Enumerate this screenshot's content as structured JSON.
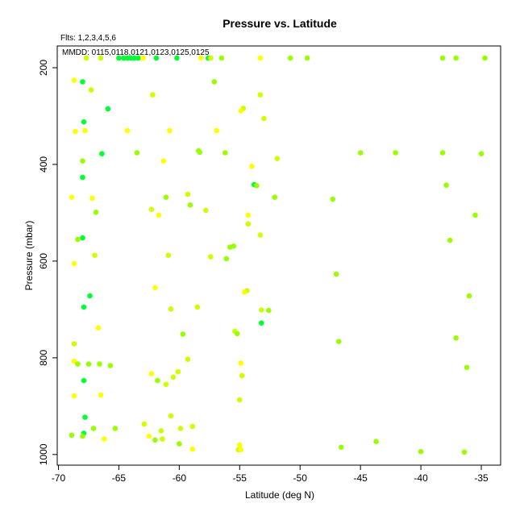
{
  "chart_data": {
    "type": "scatter",
    "title": "Pressure vs. Latitude",
    "flights_label": "Flts: 1,2,3,4,5,6",
    "mmdd_label": "MMDD: 0115,0118,0121,0123,0125,0125",
    "xlabel": "Latitude (deg N)",
    "ylabel": "Pressure (mbar)",
    "xlim": [
      -70.1,
      -33.4
    ],
    "ylim": [
      1022,
      155
    ],
    "y_reversed": true,
    "grid": false,
    "x_ticks": [
      -70,
      -65,
      -60,
      -55,
      -50,
      -45,
      -40,
      -35
    ],
    "x_tick_labels": [
      "-70",
      "-65",
      "-60",
      "-55",
      "-50",
      "-45",
      "-40",
      "-35"
    ],
    "y_ticks": [
      200,
      400,
      600,
      800,
      1000
    ],
    "y_tick_labels": [
      "200",
      "400",
      "600",
      "800",
      "1000"
    ],
    "colors": {
      "yellow": "#ffff00",
      "yellow_green": "#ccff00",
      "light_green": "#99ff00",
      "green": "#66ff00",
      "bright_green": "#00ff33"
    },
    "points": [
      {
        "x": -67.7,
        "y": 180,
        "c": "yellow_green"
      },
      {
        "x": -66.5,
        "y": 180,
        "c": "yellow_green"
      },
      {
        "x": -65.0,
        "y": 180,
        "c": "bright_green"
      },
      {
        "x": -64.6,
        "y": 180,
        "c": "bright_green"
      },
      {
        "x": -64.3,
        "y": 180,
        "c": "bright_green"
      },
      {
        "x": -64.0,
        "y": 180,
        "c": "bright_green"
      },
      {
        "x": -63.7,
        "y": 180,
        "c": "bright_green"
      },
      {
        "x": -63.4,
        "y": 180,
        "c": "bright_green"
      },
      {
        "x": -63.0,
        "y": 180,
        "c": "yellow"
      },
      {
        "x": -61.9,
        "y": 180,
        "c": "bright_green"
      },
      {
        "x": -60.2,
        "y": 180,
        "c": "bright_green"
      },
      {
        "x": -58.2,
        "y": 180,
        "c": "yellow"
      },
      {
        "x": -57.6,
        "y": 180,
        "c": "bright_green"
      },
      {
        "x": -57.4,
        "y": 180,
        "c": "yellow_green"
      },
      {
        "x": -56.5,
        "y": 180,
        "c": "light_green"
      },
      {
        "x": -53.3,
        "y": 180,
        "c": "yellow"
      },
      {
        "x": -50.8,
        "y": 180,
        "c": "light_green"
      },
      {
        "x": -49.4,
        "y": 180,
        "c": "light_green"
      },
      {
        "x": -38.2,
        "y": 180,
        "c": "light_green"
      },
      {
        "x": -37.1,
        "y": 180,
        "c": "light_green"
      },
      {
        "x": -34.7,
        "y": 180,
        "c": "light_green"
      },
      {
        "x": -68.7,
        "y": 226,
        "c": "yellow"
      },
      {
        "x": -68.0,
        "y": 229,
        "c": "bright_green"
      },
      {
        "x": -57.1,
        "y": 229,
        "c": "light_green"
      },
      {
        "x": -67.3,
        "y": 246,
        "c": "yellow_green"
      },
      {
        "x": -62.2,
        "y": 256,
        "c": "yellow_green"
      },
      {
        "x": -53.3,
        "y": 256,
        "c": "yellow_green"
      },
      {
        "x": -65.9,
        "y": 285,
        "c": "bright_green"
      },
      {
        "x": -54.7,
        "y": 284,
        "c": "yellow_green"
      },
      {
        "x": -54.9,
        "y": 289,
        "c": "yellow"
      },
      {
        "x": -53.0,
        "y": 305,
        "c": "yellow_green"
      },
      {
        "x": -67.9,
        "y": 312,
        "c": "bright_green"
      },
      {
        "x": -68.6,
        "y": 332,
        "c": "yellow"
      },
      {
        "x": -67.8,
        "y": 330,
        "c": "yellow"
      },
      {
        "x": -64.3,
        "y": 330,
        "c": "yellow"
      },
      {
        "x": -60.8,
        "y": 330,
        "c": "yellow"
      },
      {
        "x": -56.9,
        "y": 330,
        "c": "yellow"
      },
      {
        "x": -66.4,
        "y": 378,
        "c": "bright_green"
      },
      {
        "x": -63.5,
        "y": 376,
        "c": "light_green"
      },
      {
        "x": -58.4,
        "y": 372,
        "c": "light_green"
      },
      {
        "x": -58.3,
        "y": 375,
        "c": "light_green"
      },
      {
        "x": -56.2,
        "y": 376,
        "c": "light_green"
      },
      {
        "x": -45.0,
        "y": 376,
        "c": "light_green"
      },
      {
        "x": -42.1,
        "y": 376,
        "c": "light_green"
      },
      {
        "x": -38.2,
        "y": 376,
        "c": "light_green"
      },
      {
        "x": -35.0,
        "y": 378,
        "c": "light_green"
      },
      {
        "x": -51.9,
        "y": 388,
        "c": "yellow_green"
      },
      {
        "x": -68.0,
        "y": 393,
        "c": "light_green"
      },
      {
        "x": -61.3,
        "y": 393,
        "c": "yellow"
      },
      {
        "x": -54.0,
        "y": 404,
        "c": "yellow"
      },
      {
        "x": -68.0,
        "y": 427,
        "c": "bright_green"
      },
      {
        "x": -53.8,
        "y": 442,
        "c": "bright_green"
      },
      {
        "x": -53.6,
        "y": 444,
        "c": "light_green"
      },
      {
        "x": -37.9,
        "y": 443,
        "c": "light_green"
      },
      {
        "x": -68.9,
        "y": 468,
        "c": "yellow"
      },
      {
        "x": -67.2,
        "y": 470,
        "c": "yellow"
      },
      {
        "x": -61.1,
        "y": 468,
        "c": "light_green"
      },
      {
        "x": -59.3,
        "y": 462,
        "c": "yellow_green"
      },
      {
        "x": -52.1,
        "y": 468,
        "c": "light_green"
      },
      {
        "x": -47.3,
        "y": 472,
        "c": "light_green"
      },
      {
        "x": -59.1,
        "y": 484,
        "c": "light_green"
      },
      {
        "x": -62.3,
        "y": 493,
        "c": "yellow_green"
      },
      {
        "x": -57.8,
        "y": 495,
        "c": "yellow_green"
      },
      {
        "x": -66.9,
        "y": 499,
        "c": "light_green"
      },
      {
        "x": -61.7,
        "y": 505,
        "c": "yellow"
      },
      {
        "x": -54.3,
        "y": 505,
        "c": "yellow"
      },
      {
        "x": -35.5,
        "y": 505,
        "c": "light_green"
      },
      {
        "x": -54.3,
        "y": 523,
        "c": "yellow_green"
      },
      {
        "x": -53.3,
        "y": 546,
        "c": "yellow_green"
      },
      {
        "x": -68.0,
        "y": 552,
        "c": "bright_green"
      },
      {
        "x": -68.4,
        "y": 555,
        "c": "light_green"
      },
      {
        "x": -37.6,
        "y": 557,
        "c": "light_green"
      },
      {
        "x": -55.8,
        "y": 571,
        "c": "light_green"
      },
      {
        "x": -55.5,
        "y": 569,
        "c": "light_green"
      },
      {
        "x": -67.0,
        "y": 588,
        "c": "yellow_green"
      },
      {
        "x": -60.9,
        "y": 588,
        "c": "yellow_green"
      },
      {
        "x": -57.4,
        "y": 591,
        "c": "yellow_green"
      },
      {
        "x": -56.1,
        "y": 595,
        "c": "light_green"
      },
      {
        "x": -68.7,
        "y": 605,
        "c": "yellow"
      },
      {
        "x": -47.0,
        "y": 627,
        "c": "light_green"
      },
      {
        "x": -62.0,
        "y": 655,
        "c": "yellow"
      },
      {
        "x": -54.4,
        "y": 661,
        "c": "yellow_green"
      },
      {
        "x": -54.6,
        "y": 664,
        "c": "yellow"
      },
      {
        "x": -67.4,
        "y": 672,
        "c": "bright_green"
      },
      {
        "x": -36.0,
        "y": 672,
        "c": "light_green"
      },
      {
        "x": -67.9,
        "y": 695,
        "c": "bright_green"
      },
      {
        "x": -60.7,
        "y": 699,
        "c": "yellow_green"
      },
      {
        "x": -58.5,
        "y": 695,
        "c": "yellow_green"
      },
      {
        "x": -53.2,
        "y": 701,
        "c": "yellow_green"
      },
      {
        "x": -52.6,
        "y": 702,
        "c": "light_green"
      },
      {
        "x": -53.2,
        "y": 728,
        "c": "bright_green"
      },
      {
        "x": -66.7,
        "y": 738,
        "c": "yellow"
      },
      {
        "x": -55.4,
        "y": 745,
        "c": "yellow_green"
      },
      {
        "x": -55.2,
        "y": 750,
        "c": "light_green"
      },
      {
        "x": -59.7,
        "y": 751,
        "c": "light_green"
      },
      {
        "x": -37.1,
        "y": 759,
        "c": "light_green"
      },
      {
        "x": -46.8,
        "y": 766,
        "c": "light_green"
      },
      {
        "x": -68.7,
        "y": 771,
        "c": "yellow_green"
      },
      {
        "x": -59.3,
        "y": 803,
        "c": "yellow_green"
      },
      {
        "x": -68.7,
        "y": 807,
        "c": "yellow"
      },
      {
        "x": -68.4,
        "y": 813,
        "c": "light_green"
      },
      {
        "x": -67.5,
        "y": 813,
        "c": "light_green"
      },
      {
        "x": -66.6,
        "y": 813,
        "c": "light_green"
      },
      {
        "x": -65.7,
        "y": 816,
        "c": "light_green"
      },
      {
        "x": -54.9,
        "y": 811,
        "c": "yellow"
      },
      {
        "x": -36.2,
        "y": 820,
        "c": "light_green"
      },
      {
        "x": -62.3,
        "y": 833,
        "c": "yellow"
      },
      {
        "x": -60.1,
        "y": 829,
        "c": "yellow_green"
      },
      {
        "x": -60.5,
        "y": 840,
        "c": "yellow_green"
      },
      {
        "x": -54.8,
        "y": 837,
        "c": "yellow_green"
      },
      {
        "x": -67.9,
        "y": 847,
        "c": "bright_green"
      },
      {
        "x": -61.8,
        "y": 847,
        "c": "light_green"
      },
      {
        "x": -61.1,
        "y": 855,
        "c": "yellow_green"
      },
      {
        "x": -68.7,
        "y": 879,
        "c": "yellow"
      },
      {
        "x": -66.5,
        "y": 877,
        "c": "yellow"
      },
      {
        "x": -55.0,
        "y": 887,
        "c": "yellow_green"
      },
      {
        "x": -60.7,
        "y": 920,
        "c": "yellow_green"
      },
      {
        "x": -67.8,
        "y": 923,
        "c": "bright_green"
      },
      {
        "x": -62.9,
        "y": 937,
        "c": "yellow_green"
      },
      {
        "x": -58.9,
        "y": 942,
        "c": "yellow_green"
      },
      {
        "x": -67.1,
        "y": 946,
        "c": "light_green"
      },
      {
        "x": -65.3,
        "y": 946,
        "c": "light_green"
      },
      {
        "x": -61.5,
        "y": 951,
        "c": "yellow_green"
      },
      {
        "x": -59.9,
        "y": 946,
        "c": "yellow_green"
      },
      {
        "x": -67.9,
        "y": 956,
        "c": "bright_green"
      },
      {
        "x": -68.9,
        "y": 960,
        "c": "light_green"
      },
      {
        "x": -68.0,
        "y": 962,
        "c": "light_green"
      },
      {
        "x": -62.5,
        "y": 962,
        "c": "yellow"
      },
      {
        "x": -66.2,
        "y": 968,
        "c": "yellow"
      },
      {
        "x": -62.0,
        "y": 970,
        "c": "light_green"
      },
      {
        "x": -61.4,
        "y": 968,
        "c": "yellow_green"
      },
      {
        "x": -43.7,
        "y": 973,
        "c": "light_green"
      },
      {
        "x": -60.0,
        "y": 978,
        "c": "light_green"
      },
      {
        "x": -55.0,
        "y": 980,
        "c": "yellow"
      },
      {
        "x": -46.6,
        "y": 985,
        "c": "light_green"
      },
      {
        "x": -58.9,
        "y": 989,
        "c": "yellow"
      },
      {
        "x": -55.1,
        "y": 990,
        "c": "yellow_green"
      },
      {
        "x": -54.9,
        "y": 990,
        "c": "yellow"
      },
      {
        "x": -40.0,
        "y": 994,
        "c": "light_green"
      },
      {
        "x": -36.4,
        "y": 995,
        "c": "light_green"
      }
    ]
  }
}
